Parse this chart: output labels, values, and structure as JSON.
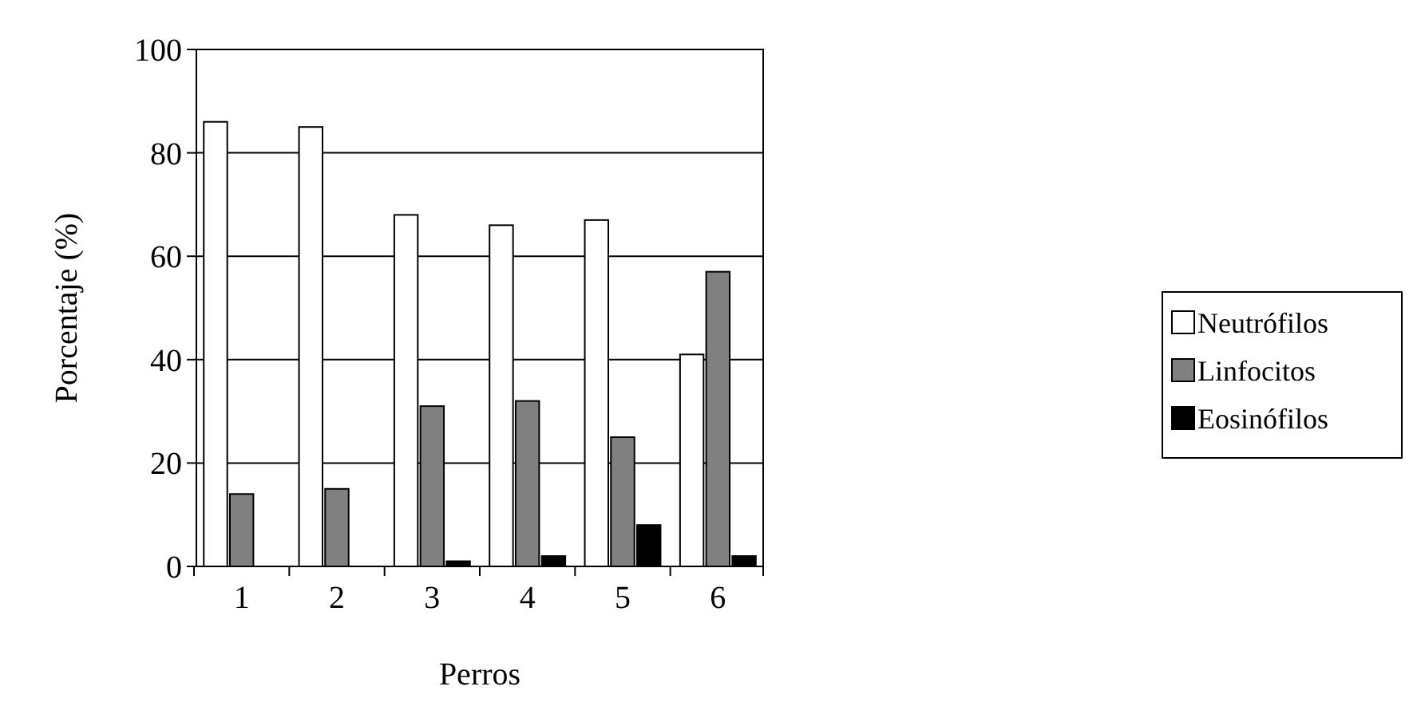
{
  "chart_data": {
    "type": "bar",
    "xlabel": "Perros",
    "ylabel": "Porcentaje (%)",
    "categories": [
      "1",
      "2",
      "3",
      "4",
      "5",
      "6"
    ],
    "series": [
      {
        "name": "Neutrófilos",
        "color": "#ffffff",
        "values": [
          86,
          85,
          68,
          66,
          67,
          41
        ]
      },
      {
        "name": "Linfocitos",
        "color": "#808080",
        "values": [
          14,
          15,
          31,
          32,
          25,
          57
        ]
      },
      {
        "name": "Eosinófilos",
        "color": "#000000",
        "values": [
          0,
          0,
          1,
          2,
          8,
          2
        ]
      }
    ],
    "ylim": [
      0,
      100
    ],
    "yticks": [
      0,
      20,
      40,
      60,
      80,
      100
    ],
    "grid": "y",
    "legend": "right"
  }
}
